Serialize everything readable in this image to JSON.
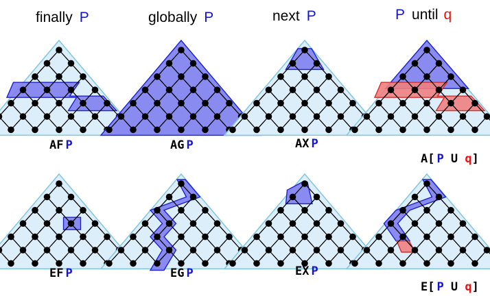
{
  "headers": {
    "finally": {
      "word": "finally",
      "prop": "P"
    },
    "globally": {
      "word": "globally",
      "prop": "P"
    },
    "next": {
      "word": "next",
      "prop": "P"
    },
    "until": {
      "prop_left": "P",
      "word": "until",
      "prop_right": "q"
    }
  },
  "labels": {
    "AF": {
      "op": "AF",
      "prop": "P"
    },
    "AG": {
      "op": "AG",
      "prop": "P"
    },
    "AX": {
      "op": "AX",
      "prop": "P"
    },
    "AU": {
      "op": "A[",
      "p": "P",
      "u": " U ",
      "q": "q",
      "close": "]"
    },
    "EF": {
      "op": "EF",
      "prop": "P"
    },
    "EG": {
      "op": "EG",
      "prop": "P"
    },
    "EX": {
      "op": "EX",
      "prop": "P"
    },
    "EU": {
      "op": "E[",
      "p": "P",
      "u": " U ",
      "q": "q",
      "close": "]"
    }
  },
  "colors": {
    "triangle_fill": "#dceefa",
    "triangle_stroke": "#7fc6e0",
    "p_fill": "#8080ee",
    "p_stroke": "#2020d0",
    "q_fill": "#f08080",
    "q_stroke": "#d03030",
    "node": "#000000"
  }
}
